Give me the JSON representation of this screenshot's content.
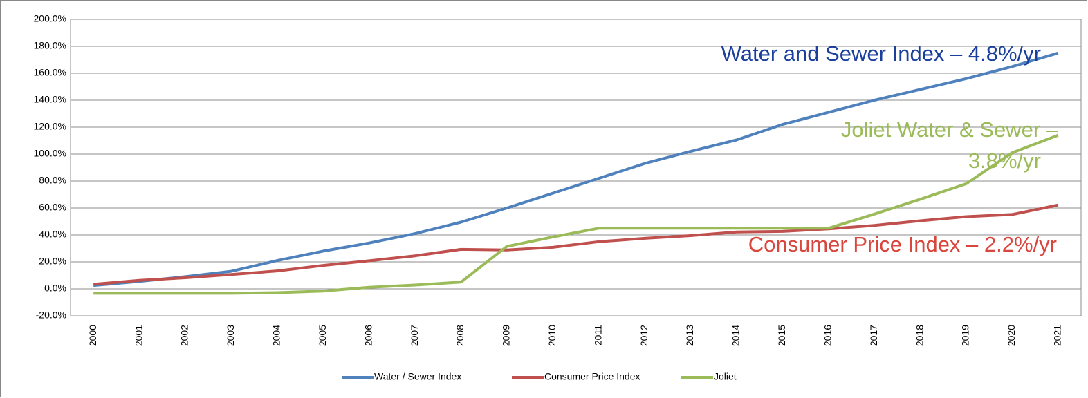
{
  "chart_data": {
    "type": "line",
    "categories": [
      "2000",
      "2001",
      "2002",
      "2003",
      "2004",
      "2005",
      "2006",
      "2007",
      "2008",
      "2009",
      "2010",
      "2011",
      "2012",
      "2013",
      "2014",
      "2015",
      "2016",
      "2017",
      "2018",
      "2019",
      "2020",
      "2021"
    ],
    "series": [
      {
        "name": "Water / Sewer Index",
        "color": "#4f81bd",
        "values": [
          2.5,
          5.5,
          9,
          13,
          21,
          28,
          34,
          41,
          49.5,
          60,
          71,
          82,
          93,
          102,
          110.5,
          122,
          131,
          140,
          148,
          156,
          165,
          175
        ]
      },
      {
        "name": "Consumer Price Index",
        "color": "#c0504d",
        "values": [
          3.4,
          6.3,
          8.2,
          10.6,
          13.3,
          17.4,
          20.8,
          24.5,
          29.3,
          28.8,
          30.8,
          35,
          37.5,
          39.5,
          42.2,
          42.6,
          44.5,
          47.1,
          50.5,
          53.6,
          55.2,
          62.2
        ]
      },
      {
        "name": "Joliet",
        "color": "#9bbb59",
        "values": [
          -3.3,
          -3.3,
          -3.3,
          -3.3,
          -2.8,
          -1.7,
          1.2,
          2.8,
          5,
          31.5,
          38.5,
          45,
          45,
          45,
          45,
          45,
          45,
          55.5,
          66.5,
          78,
          101,
          114
        ]
      }
    ],
    "ylim": [
      -20,
      200
    ],
    "yticks": [
      {
        "value": -20,
        "label": "-20.0%"
      },
      {
        "value": 0,
        "label": "0.0%"
      },
      {
        "value": 20,
        "label": "20.0%"
      },
      {
        "value": 40,
        "label": "40.0%"
      },
      {
        "value": 60,
        "label": "60.0%"
      },
      {
        "value": 80,
        "label": "80.0%"
      },
      {
        "value": 100,
        "label": "100.0%"
      },
      {
        "value": 120,
        "label": "120.0%"
      },
      {
        "value": 140,
        "label": "140.0%"
      },
      {
        "value": 160,
        "label": "160.0%"
      },
      {
        "value": 180,
        "label": "180.0%"
      },
      {
        "value": 200,
        "label": "200.0%"
      }
    ],
    "grid": true,
    "legend": "bottom",
    "annotations": [
      {
        "lines": [
          "Water and Sewer Index – 4.8%/yr"
        ],
        "color": "#1a3f9c"
      },
      {
        "lines": [
          "Joliet Water & Sewer –",
          "3.8%/yr"
        ],
        "color": "#9bbb59"
      },
      {
        "lines": [
          "Consumer Price Index – 2.2%/yr"
        ],
        "color": "#d9463d"
      }
    ]
  }
}
